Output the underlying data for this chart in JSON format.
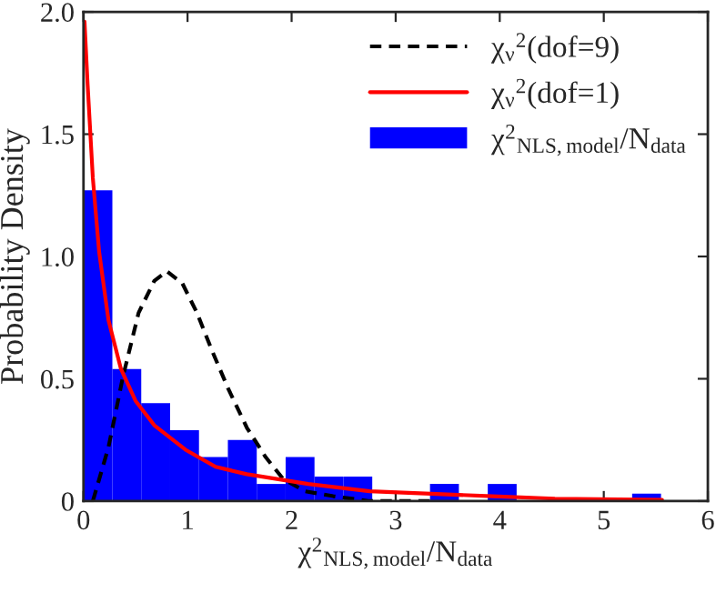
{
  "chart_data": {
    "type": "histogram",
    "xlabel": "χ$^{2}$$_{NLS,model}$/N$_{data}$",
    "ylabel": "Probability Density",
    "series": [
      {
        "type": "histogram",
        "name": "χ$^{2}$$_{NLS,model}$/N$_{data}$",
        "color": "#0000ff",
        "bins": [
          0,
          0.2775,
          0.555,
          0.8325,
          1.11,
          1.3875,
          1.665,
          1.9425,
          2.22,
          2.4975,
          2.775,
          3.0525,
          3.33,
          3.6075,
          3.885,
          4.1625,
          4.44,
          4.7175,
          4.995,
          5.2725,
          5.55
        ],
        "values": [
          1.27,
          0.54,
          0.4,
          0.29,
          0.18,
          0.25,
          0.07,
          0.18,
          0.1,
          0.1,
          0,
          0,
          0.07,
          0,
          0.07,
          0,
          0,
          0,
          0,
          0.03
        ]
      },
      {
        "type": "line",
        "name": "χ$_{ν}$$^{2}$(dof=9)",
        "color": "#000000",
        "line_style": "dashed",
        "x": [
          0.09,
          0.24,
          0.38,
          0.53,
          0.68,
          0.8,
          0.95,
          1.09,
          1.24,
          1.39,
          1.57,
          1.75,
          1.92,
          2.13,
          2.4,
          2.75,
          3.34
        ],
        "values": [
          0,
          0.22,
          0.51,
          0.77,
          0.9,
          0.94,
          0.89,
          0.77,
          0.61,
          0.46,
          0.3,
          0.18,
          0.09,
          0.04,
          0.02,
          0,
          0
        ]
      },
      {
        "type": "line",
        "name": "χ$_{ν}$$^{2}$(dof=1)",
        "color": "#ff0000",
        "line_style": "solid",
        "x": [
          0.01,
          0.04,
          0.09,
          0.15,
          0.24,
          0.36,
          0.5,
          0.68,
          0.98,
          1.27,
          1.57,
          2.16,
          2.75,
          3.34,
          3.93,
          4.53,
          5.56
        ],
        "values": [
          1.96,
          1.7,
          1.32,
          1.02,
          0.74,
          0.54,
          0.41,
          0.31,
          0.21,
          0.14,
          0.11,
          0.07,
          0.04,
          0.03,
          0.02,
          0.01,
          0.005
        ]
      }
    ],
    "xlim": [
      0,
      6
    ],
    "xticks": [
      0,
      1,
      2,
      3,
      4,
      5,
      6
    ],
    "ylim": [
      0,
      2
    ],
    "yticks": [
      0,
      {
        "value": 0.5,
        "label": "0.5"
      },
      {
        "value": 1,
        "label": "1.0"
      },
      {
        "value": 1.5,
        "label": "1.5"
      },
      {
        "value": 2,
        "label": "2.0"
      }
    ],
    "legend": "top right",
    "grid": false
  }
}
